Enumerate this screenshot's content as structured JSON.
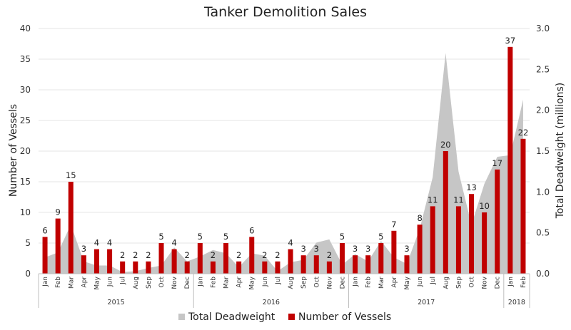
{
  "chart_data": {
    "type": "bar",
    "title": "Tanker Demolition Sales",
    "ylabel_left": "Number of Vessels",
    "ylabel_right": "Total Deadweight (millions)",
    "ylim_left": [
      0,
      40
    ],
    "yticks_left": [
      "0",
      "5",
      "10",
      "15",
      "20",
      "25",
      "30",
      "35",
      "40"
    ],
    "ylim_right": [
      0,
      3.0
    ],
    "yticks_right": [
      "0.0",
      "0.5",
      "1.0",
      "1.5",
      "2.0",
      "2.5",
      "3.0"
    ],
    "grid": true,
    "legend_position": "bottom",
    "categories": [
      "Jan",
      "Feb",
      "Mar",
      "Apr",
      "May",
      "Jun",
      "Jul",
      "Aug",
      "Sep",
      "Oct",
      "Nov",
      "Dec",
      "Jan",
      "Feb",
      "Mar",
      "Apr",
      "May",
      "Jun",
      "Jul",
      "Aug",
      "Sep",
      "Oct",
      "Nov",
      "Dec",
      "Jan",
      "Feb",
      "Mar",
      "Apr",
      "May",
      "Jun",
      "Jul",
      "Aug",
      "Sep",
      "Oct",
      "Nov",
      "Dec",
      "Jan",
      "Feb"
    ],
    "years": [
      {
        "label": "2015",
        "months": 12
      },
      {
        "label": "2016",
        "months": 12
      },
      {
        "label": "2017",
        "months": 12
      },
      {
        "label": "2018",
        "months": 2
      }
    ],
    "series": [
      {
        "name": "Total Deadweight",
        "type": "area",
        "axis": "right",
        "color": "#c6c6c6",
        "values": [
          0.2,
          0.26,
          0.6,
          0.15,
          0.1,
          0.1,
          0.02,
          0.03,
          0.07,
          0.1,
          0.32,
          0.15,
          0.21,
          0.29,
          0.25,
          0.08,
          0.25,
          0.22,
          0.03,
          0.14,
          0.17,
          0.38,
          0.42,
          0.11,
          0.24,
          0.15,
          0.4,
          0.2,
          0.12,
          0.55,
          1.18,
          2.7,
          1.25,
          0.6,
          1.1,
          1.43,
          1.45,
          2.13
        ]
      },
      {
        "name": "Number of Vessels",
        "type": "bar",
        "axis": "left",
        "color": "#c00000",
        "values": [
          6,
          9,
          15,
          3,
          4,
          4,
          2,
          2,
          2,
          5,
          4,
          2,
          5,
          2,
          5,
          2,
          6,
          2,
          2,
          4,
          3,
          3,
          2,
          5,
          3,
          3,
          5,
          7,
          3,
          8,
          11,
          20,
          11,
          13,
          10,
          17,
          37,
          22
        ]
      }
    ]
  },
  "colors": {
    "bar": "#c00000",
    "area": "#c6c6c6",
    "grid": "#e4e4e4",
    "axis": "#bfbfbf"
  }
}
